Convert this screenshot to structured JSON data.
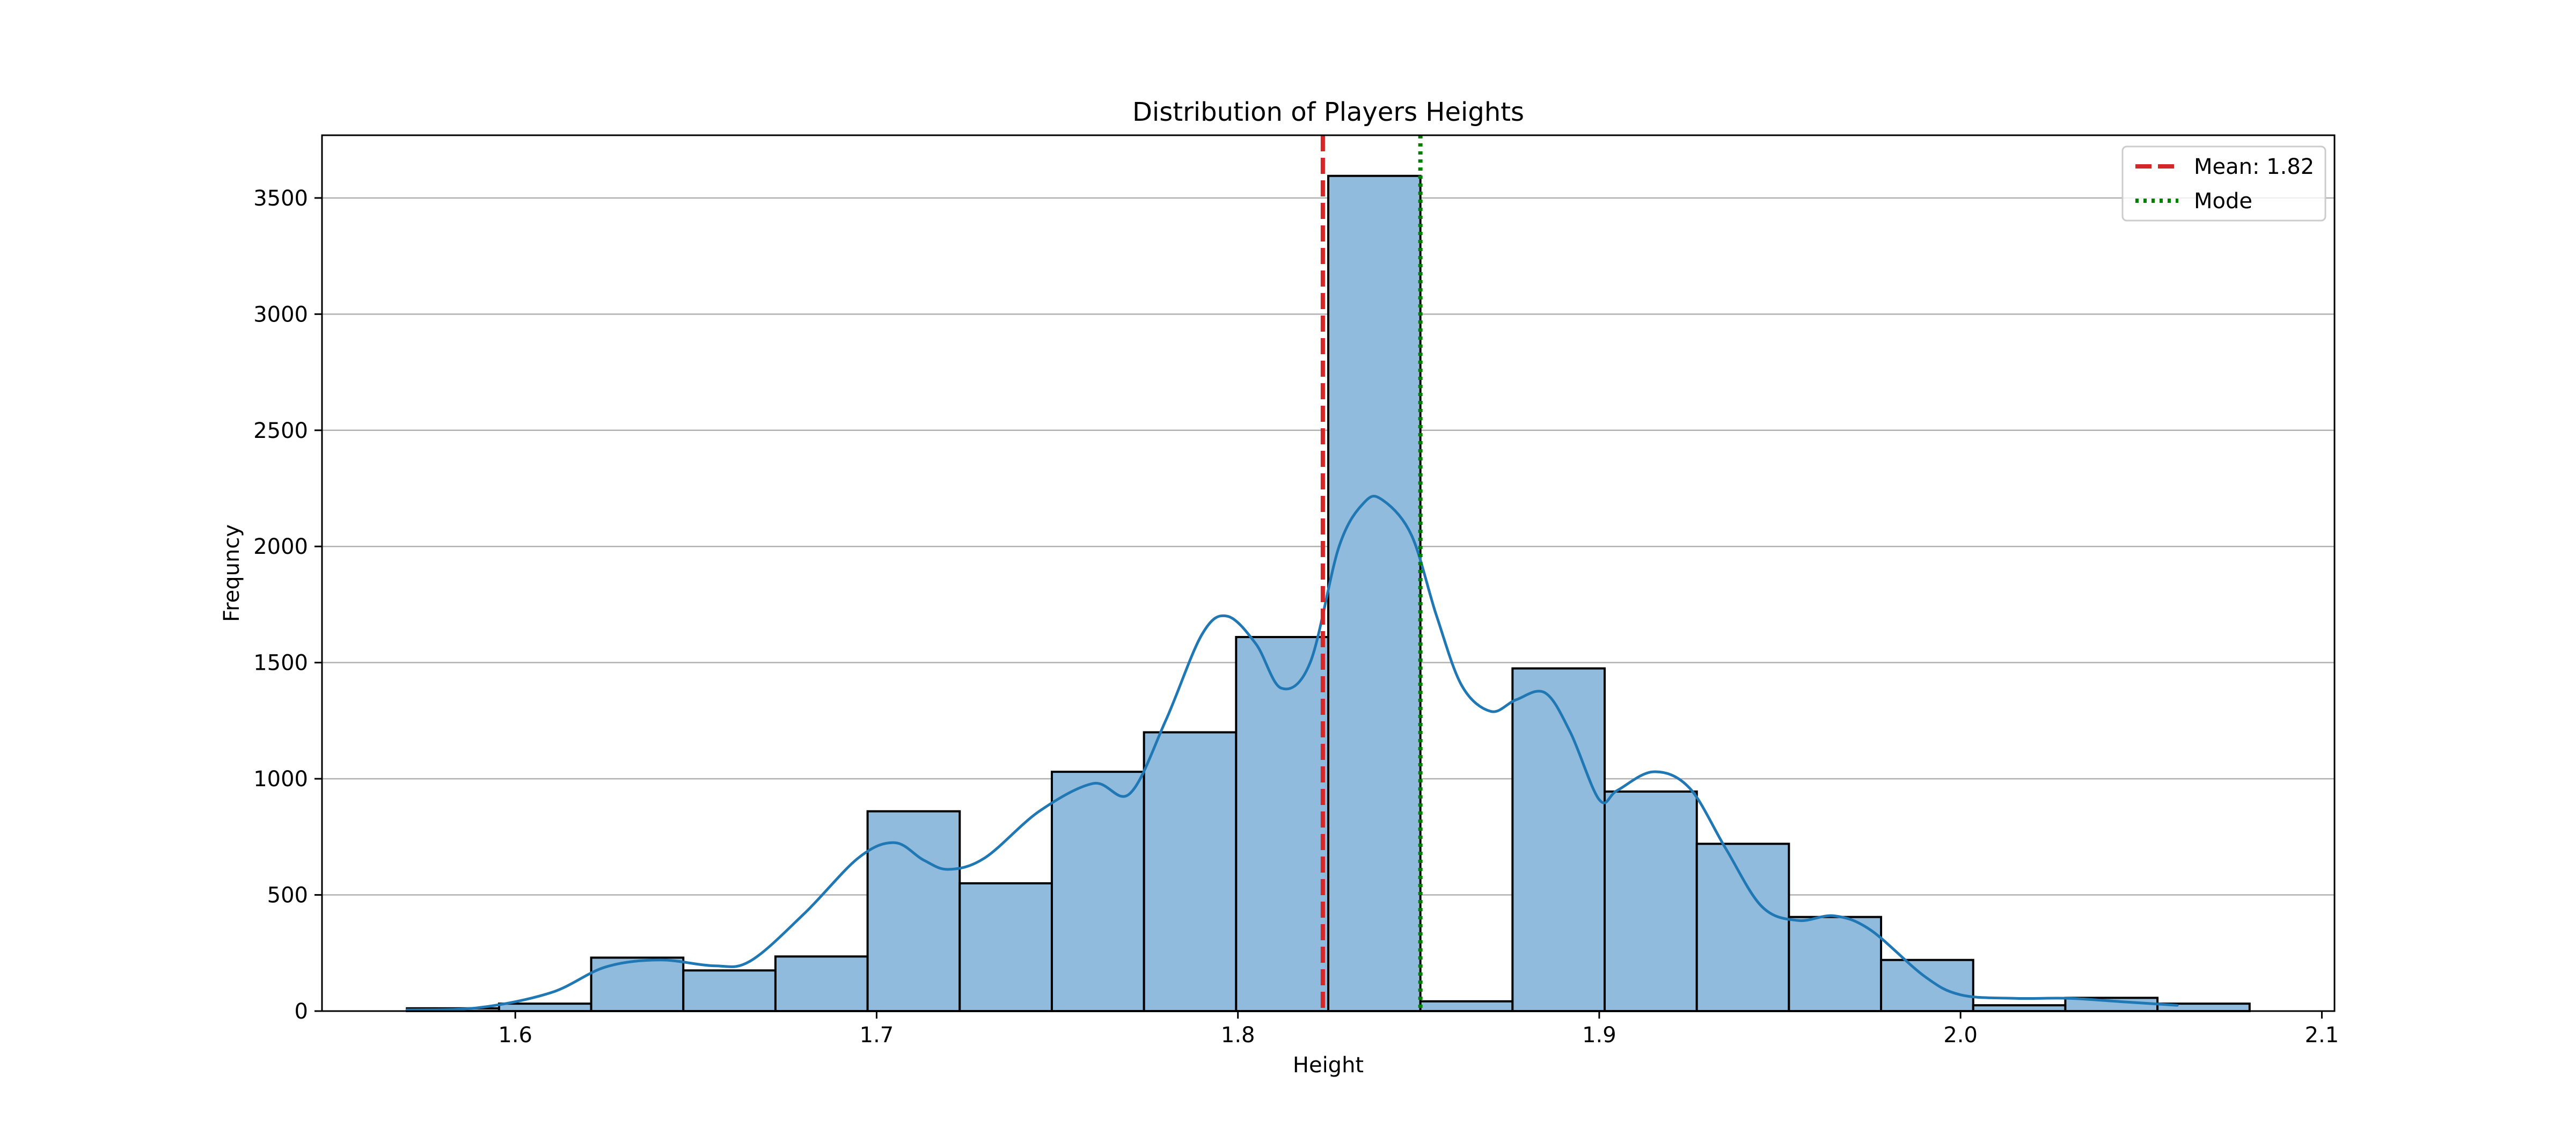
{
  "chart_data": {
    "type": "bar",
    "title": "Distribution of Players Heights",
    "xlabel": "Height",
    "ylabel": "Frequncy",
    "xlim": [
      1.5465,
      2.1035
    ],
    "ylim": [
      0,
      3770
    ],
    "xticks": [
      1.6,
      1.7,
      1.8,
      1.9,
      2.0,
      2.1
    ],
    "xtick_labels": [
      "1.6",
      "1.7",
      "1.8",
      "1.9",
      "2.0",
      "2.1"
    ],
    "yticks": [
      0,
      500,
      1000,
      1500,
      2000,
      2500,
      3000,
      3500
    ],
    "ytick_labels": [
      "0",
      "500",
      "1000",
      "1500",
      "2000",
      "2500",
      "3000",
      "3500"
    ],
    "grid": "y",
    "legend_position": "top-right",
    "bin_edges": [
      1.57,
      1.5955,
      1.621,
      1.6465,
      1.672,
      1.6975,
      1.723,
      1.7485,
      1.774,
      1.7995,
      1.825,
      1.8505,
      1.876,
      1.9015,
      1.927,
      1.9525,
      1.978,
      2.0035,
      2.029,
      2.0545,
      2.08
    ],
    "values": [
      12,
      32,
      230,
      175,
      235,
      860,
      550,
      1030,
      1200,
      1610,
      3595,
      42,
      1475,
      945,
      720,
      405,
      220,
      25,
      57,
      32
    ],
    "bar_color": "#90bbdc",
    "bar_edge_color": "#000000",
    "kde": {
      "color": "#1f77b4",
      "x": [
        1.57,
        1.59,
        1.61,
        1.625,
        1.64,
        1.655,
        1.665,
        1.68,
        1.695,
        1.705,
        1.713,
        1.72,
        1.73,
        1.745,
        1.76,
        1.77,
        1.78,
        1.79,
        1.797,
        1.805,
        1.812,
        1.82,
        1.828,
        1.835,
        1.84,
        1.848,
        1.855,
        1.862,
        1.87,
        1.877,
        1.885,
        1.892,
        1.9,
        1.905,
        1.915,
        1.925,
        1.935,
        1.945,
        1.955,
        1.965,
        1.975,
        1.99,
        2.0,
        2.015,
        2.03,
        2.045,
        2.06
      ],
      "y": [
        5,
        15,
        80,
        190,
        220,
        195,
        215,
        420,
        660,
        725,
        650,
        610,
        660,
        860,
        980,
        935,
        1250,
        1620,
        1700,
        1580,
        1390,
        1500,
        2000,
        2190,
        2200,
        2050,
        1700,
        1400,
        1290,
        1340,
        1370,
        1200,
        910,
        950,
        1030,
        960,
        700,
        450,
        390,
        410,
        350,
        150,
        70,
        55,
        55,
        40,
        25
      ]
    },
    "reference_lines": [
      {
        "name": "Mean: 1.82",
        "x": 1.8235,
        "color": "#d62728",
        "style": "dashed"
      },
      {
        "name": "Mode",
        "x": 1.8505,
        "color": "#008000",
        "style": "dotted"
      }
    ]
  }
}
